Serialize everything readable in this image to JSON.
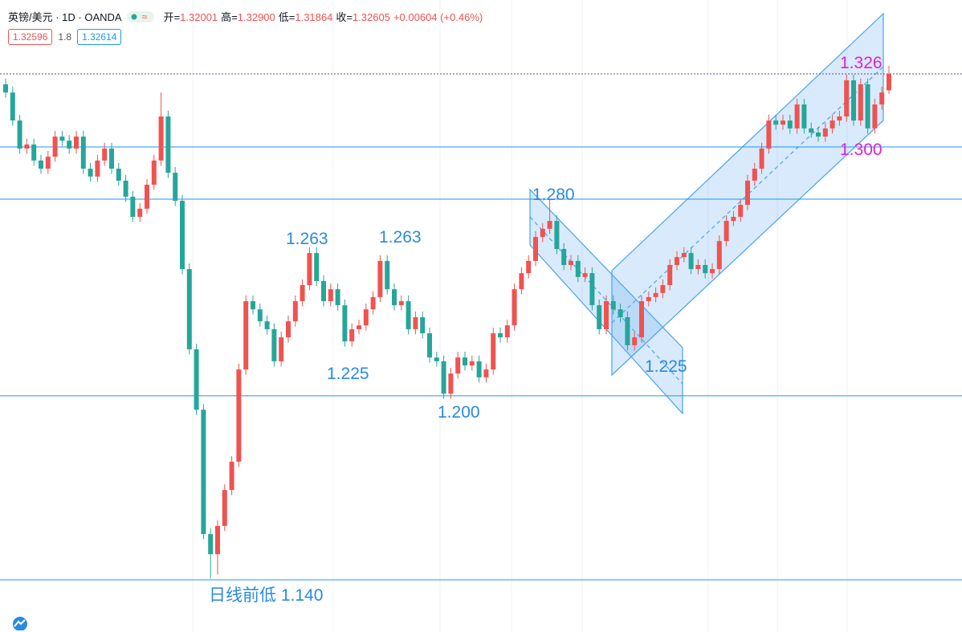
{
  "header": {
    "symbol": "英镑/美元 · 1D · OANDA",
    "stats": [
      {
        "label": "开=",
        "value": "1.32001"
      },
      {
        "label": "高=",
        "value": "1.32900"
      },
      {
        "label": "低=",
        "value": "1.31864"
      },
      {
        "label": "收=",
        "value": "1.32605"
      },
      {
        "label": "",
        "value": "+0.00604 (+0.46%)"
      }
    ],
    "bid": "1.32596",
    "spread": "1.8",
    "ask": "1.32614"
  },
  "chart_data": {
    "type": "candlestick",
    "up_color": "#ef5350",
    "down_color": "#26a69a",
    "ylim": [
      1.1209,
      1.3532
    ],
    "levels": [
      1.2992,
      1.28,
      1.2077,
      1.1401
    ],
    "level_color": "#2196f3",
    "price_line_color": "#5b4a9e",
    "annotations": [
      {
        "text": "1.263",
        "color": "#2a8ae0"
      },
      {
        "text": "1.263",
        "color": "#2a8ae0"
      },
      {
        "text": "1.225",
        "color": "#2a8ae0"
      },
      {
        "text": "1.200",
        "color": "#2a8ae0"
      },
      {
        "text": "1.280",
        "color": "#2a8ae0"
      },
      {
        "text": "1.225",
        "color": "#2a8ae0"
      },
      {
        "text": "日线前低 1.140",
        "color": "#2a8ae0"
      },
      {
        "text": "1.326",
        "color": "#e020d0"
      },
      {
        "text": "1.300",
        "color": "#e020d0"
      }
    ],
    "candles": [
      [
        1.3222,
        1.3243,
        1.3173,
        1.3192
      ],
      [
        1.3192,
        1.3213,
        1.307,
        1.3089
      ],
      [
        1.3089,
        1.311,
        1.2967,
        1.2986
      ],
      [
        1.2986,
        1.3022,
        1.2967,
        1.3001
      ],
      [
        1.3001,
        1.3022,
        1.2923,
        1.2942
      ],
      [
        1.2942,
        1.2963,
        1.2893,
        1.2912
      ],
      [
        1.2912,
        1.2977,
        1.2893,
        1.2956
      ],
      [
        1.2956,
        1.3051,
        1.2937,
        1.303
      ],
      [
        1.303,
        1.3051,
        1.2996,
        1.3015
      ],
      [
        1.3015,
        1.3036,
        1.2967,
        1.2986
      ],
      [
        1.2986,
        1.3051,
        1.2967,
        1.303
      ],
      [
        1.303,
        1.3051,
        1.2893,
        1.2912
      ],
      [
        1.2912,
        1.2933,
        1.2864,
        1.2883
      ],
      [
        1.2883,
        1.2963,
        1.2864,
        1.2942
      ],
      [
        1.2942,
        1.3007,
        1.2923,
        1.2986
      ],
      [
        1.2986,
        1.3007,
        1.2893,
        1.2912
      ],
      [
        1.2912,
        1.2933,
        1.2849,
        1.2868
      ],
      [
        1.2868,
        1.2889,
        1.279,
        1.2809
      ],
      [
        1.2809,
        1.283,
        1.2716,
        1.2735
      ],
      [
        1.2735,
        1.2786,
        1.2716,
        1.2765
      ],
      [
        1.2765,
        1.2874,
        1.2746,
        1.2853
      ],
      [
        1.2853,
        1.2963,
        1.2834,
        1.2942
      ],
      [
        1.2942,
        1.3192,
        1.2923,
        1.3104
      ],
      [
        1.3104,
        1.3125,
        1.2878,
        1.2897
      ],
      [
        1.2897,
        1.2918,
        1.2775,
        1.2794
      ],
      [
        1.2794,
        1.2815,
        1.2524,
        1.2543
      ],
      [
        1.2543,
        1.2564,
        1.2229,
        1.2248
      ],
      [
        1.2248,
        1.2269,
        1.2007,
        1.2026
      ],
      [
        1.2026,
        1.2047,
        1.155,
        1.1569
      ],
      [
        1.1569,
        1.159,
        1.1406,
        1.1495
      ],
      [
        1.1495,
        1.162,
        1.142,
        1.1599
      ],
      [
        1.1599,
        1.1752,
        1.158,
        1.1731
      ],
      [
        1.1731,
        1.1856,
        1.1712,
        1.1835
      ],
      [
        1.1835,
        1.2195,
        1.1816,
        1.2174
      ],
      [
        1.2174,
        1.2446,
        1.2155,
        1.2425
      ],
      [
        1.2425,
        1.2446,
        1.2376,
        1.2395
      ],
      [
        1.2395,
        1.2416,
        1.2332,
        1.2351
      ],
      [
        1.2351,
        1.2372,
        1.2303,
        1.2322
      ],
      [
        1.2322,
        1.2343,
        1.2185,
        1.2204
      ],
      [
        1.2204,
        1.2313,
        1.2185,
        1.2292
      ],
      [
        1.2292,
        1.2372,
        1.2273,
        1.2351
      ],
      [
        1.2351,
        1.2446,
        1.2332,
        1.2425
      ],
      [
        1.2425,
        1.2505,
        1.2406,
        1.2484
      ],
      [
        1.2484,
        1.2623,
        1.2465,
        1.2602
      ],
      [
        1.2602,
        1.2623,
        1.248,
        1.2499
      ],
      [
        1.2499,
        1.252,
        1.2406,
        1.2425
      ],
      [
        1.2425,
        1.249,
        1.2406,
        1.2469
      ],
      [
        1.2469,
        1.249,
        1.2391,
        1.241
      ],
      [
        1.241,
        1.2431,
        1.2258,
        1.2277
      ],
      [
        1.2277,
        1.2343,
        1.2258,
        1.2322
      ],
      [
        1.2322,
        1.2357,
        1.2303,
        1.2336
      ],
      [
        1.2336,
        1.2416,
        1.2317,
        1.2395
      ],
      [
        1.2395,
        1.2461,
        1.2376,
        1.244
      ],
      [
        1.244,
        1.2594,
        1.2421,
        1.2573
      ],
      [
        1.2573,
        1.2594,
        1.245,
        1.2469
      ],
      [
        1.2469,
        1.249,
        1.2391,
        1.241
      ],
      [
        1.241,
        1.2446,
        1.2391,
        1.2425
      ],
      [
        1.2425,
        1.2446,
        1.2303,
        1.2322
      ],
      [
        1.2322,
        1.2387,
        1.2303,
        1.2366
      ],
      [
        1.2366,
        1.2387,
        1.2288,
        1.2307
      ],
      [
        1.2307,
        1.2328,
        1.2199,
        1.2218
      ],
      [
        1.2218,
        1.2239,
        1.2185,
        1.2204
      ],
      [
        1.2204,
        1.2225,
        1.2066,
        1.2085
      ],
      [
        1.2085,
        1.218,
        1.2066,
        1.2159
      ],
      [
        1.2159,
        1.2239,
        1.214,
        1.2218
      ],
      [
        1.2218,
        1.2239,
        1.217,
        1.2189
      ],
      [
        1.2189,
        1.2225,
        1.217,
        1.2204
      ],
      [
        1.2204,
        1.2225,
        1.2126,
        1.2145
      ],
      [
        1.2145,
        1.2195,
        1.2126,
        1.2174
      ],
      [
        1.2174,
        1.2328,
        1.2155,
        1.2307
      ],
      [
        1.2307,
        1.2328,
        1.2273,
        1.2292
      ],
      [
        1.2292,
        1.2357,
        1.2273,
        1.2336
      ],
      [
        1.2336,
        1.249,
        1.2317,
        1.2469
      ],
      [
        1.2469,
        1.2549,
        1.245,
        1.2528
      ],
      [
        1.2528,
        1.2594,
        1.2509,
        1.2573
      ],
      [
        1.2573,
        1.2682,
        1.2554,
        1.2661
      ],
      [
        1.2661,
        1.2712,
        1.2642,
        1.2691
      ],
      [
        1.2691,
        1.28,
        1.2672,
        1.272
      ],
      [
        1.272,
        1.2741,
        1.2598,
        1.2617
      ],
      [
        1.2617,
        1.2638,
        1.2539,
        1.2558
      ],
      [
        1.2558,
        1.2594,
        1.2539,
        1.2573
      ],
      [
        1.2573,
        1.2594,
        1.2495,
        1.2514
      ],
      [
        1.2514,
        1.2549,
        1.2495,
        1.2528
      ],
      [
        1.2528,
        1.2549,
        1.2391,
        1.241
      ],
      [
        1.241,
        1.2431,
        1.2303,
        1.2322
      ],
      [
        1.2322,
        1.2446,
        1.2303,
        1.2425
      ],
      [
        1.2425,
        1.2446,
        1.2376,
        1.2395
      ],
      [
        1.2395,
        1.2416,
        1.2347,
        1.2366
      ],
      [
        1.2366,
        1.2387,
        1.2244,
        1.2263
      ],
      [
        1.2263,
        1.2313,
        1.2244,
        1.2292
      ],
      [
        1.2292,
        1.2446,
        1.2273,
        1.2425
      ],
      [
        1.2425,
        1.2461,
        1.2406,
        1.244
      ],
      [
        1.244,
        1.2476,
        1.2421,
        1.2455
      ],
      [
        1.2455,
        1.2505,
        1.2436,
        1.2484
      ],
      [
        1.2484,
        1.2579,
        1.2465,
        1.2558
      ],
      [
        1.2558,
        1.2608,
        1.2539,
        1.2587
      ],
      [
        1.2587,
        1.2623,
        1.2568,
        1.2602
      ],
      [
        1.2602,
        1.2623,
        1.2524,
        1.2543
      ],
      [
        1.2543,
        1.2579,
        1.2524,
        1.2558
      ],
      [
        1.2558,
        1.2579,
        1.2509,
        1.2528
      ],
      [
        1.2528,
        1.2564,
        1.2509,
        1.2543
      ],
      [
        1.2543,
        1.2667,
        1.2524,
        1.2646
      ],
      [
        1.2646,
        1.2741,
        1.2627,
        1.272
      ],
      [
        1.272,
        1.2756,
        1.2701,
        1.2735
      ],
      [
        1.2735,
        1.28,
        1.2716,
        1.2779
      ],
      [
        1.2779,
        1.2889,
        1.276,
        1.2868
      ],
      [
        1.2868,
        1.2933,
        1.2849,
        1.2912
      ],
      [
        1.2912,
        1.3007,
        1.2893,
        1.2986
      ],
      [
        1.2986,
        1.311,
        1.2967,
        1.3089
      ],
      [
        1.3089,
        1.311,
        1.3055,
        1.3074
      ],
      [
        1.3074,
        1.311,
        1.3055,
        1.3089
      ],
      [
        1.3089,
        1.311,
        1.3041,
        1.306
      ],
      [
        1.306,
        1.3169,
        1.3041,
        1.3148
      ],
      [
        1.3148,
        1.3169,
        1.3041,
        1.306
      ],
      [
        1.306,
        1.3081,
        1.3026,
        1.3045
      ],
      [
        1.3045,
        1.3066,
        1.3011,
        1.303
      ],
      [
        1.303,
        1.3081,
        1.3011,
        1.306
      ],
      [
        1.306,
        1.311,
        1.3041,
        1.3089
      ],
      [
        1.3089,
        1.3125,
        1.307,
        1.3104
      ],
      [
        1.3104,
        1.3258,
        1.3085,
        1.3237
      ],
      [
        1.3237,
        1.3258,
        1.307,
        1.3089
      ],
      [
        1.3089,
        1.3243,
        1.307,
        1.3222
      ],
      [
        1.3222,
        1.3243,
        1.3041,
        1.306
      ],
      [
        1.306,
        1.3169,
        1.3041,
        1.3148
      ],
      [
        1.3148,
        1.3213,
        1.3129,
        1.3192
      ],
      [
        1.32001,
        1.329,
        1.31864,
        1.32605
      ]
    ]
  }
}
